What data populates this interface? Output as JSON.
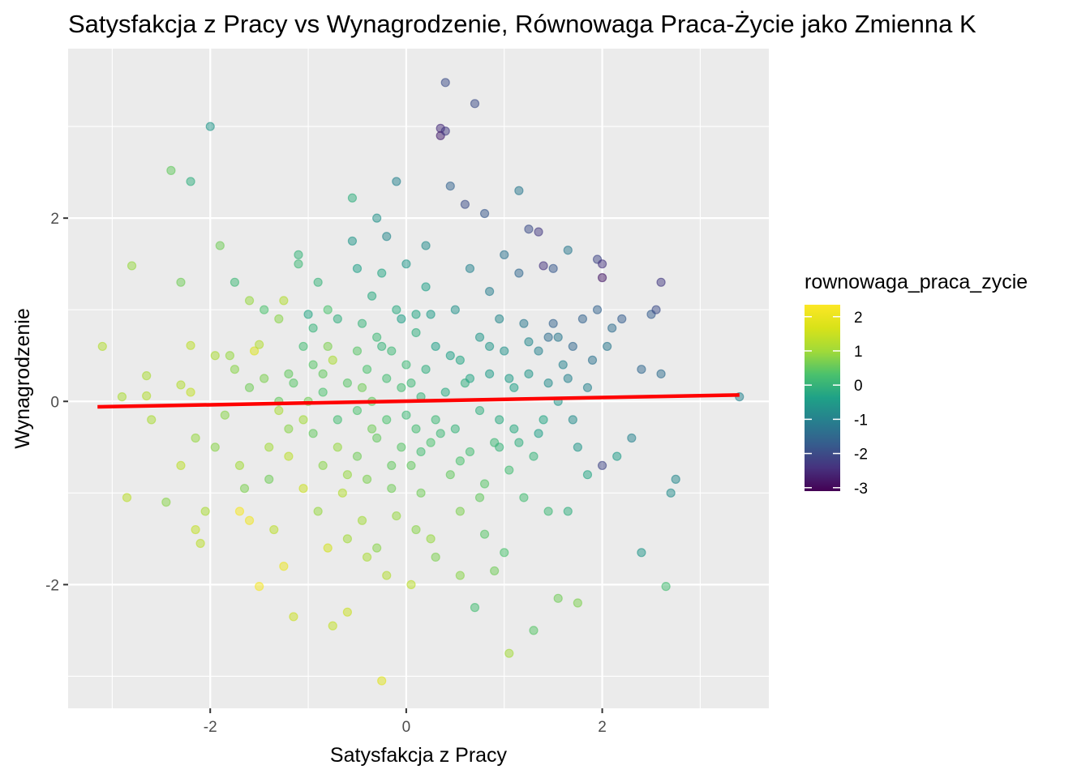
{
  "chart_data": {
    "type": "scatter",
    "title": "Satysfakcja z Pracy vs Wynagrodzenie, Równowaga Praca-Życie jako Zmienna K",
    "xlabel": "Satysfakcja z Pracy",
    "ylabel": "Wynagrodzenie",
    "xlim": [
      -3.45,
      3.7
    ],
    "ylim": [
      -3.35,
      3.85
    ],
    "x_ticks": [
      -2,
      0,
      2
    ],
    "y_ticks": [
      -2,
      0,
      2
    ],
    "x_tick_labels": [
      "-2",
      "0",
      "2"
    ],
    "y_tick_labels": [
      "-2",
      "0",
      "2"
    ],
    "grid": true,
    "legend": {
      "title": "rownowaga_praca_zycie",
      "position": "right",
      "ticks": [
        2,
        1,
        0,
        -1,
        -2,
        -3
      ],
      "tick_labels": [
        "2",
        "1",
        "0",
        "-1",
        "-2",
        "-3"
      ],
      "range": [
        -3.1,
        2.35
      ],
      "palette": "viridis"
    },
    "trend_line": {
      "x": [
        -3.15,
        3.4
      ],
      "y": [
        -0.06,
        0.07
      ],
      "color": "#ff0000"
    },
    "point_alpha": 0.5,
    "points": [
      [
        -3.1,
        0.6,
        1.2
      ],
      [
        -2.9,
        0.05,
        1.1
      ],
      [
        -2.85,
        -1.05,
        1.3
      ],
      [
        -2.8,
        1.48,
        0.9
      ],
      [
        -2.65,
        0.28,
        1.1
      ],
      [
        -2.65,
        0.06,
        1.2
      ],
      [
        -2.6,
        -0.2,
        1.1
      ],
      [
        -2.45,
        -1.1,
        0.8
      ],
      [
        -2.4,
        2.52,
        0.5
      ],
      [
        -2.3,
        1.3,
        0.6
      ],
      [
        -2.3,
        0.18,
        1.2
      ],
      [
        -2.3,
        -0.7,
        1.3
      ],
      [
        -2.2,
        0.1,
        1.4
      ],
      [
        -2.2,
        0.61,
        1.3
      ],
      [
        -2.2,
        2.4,
        -0.1
      ],
      [
        -2.15,
        -0.4,
        0.9
      ],
      [
        -2.15,
        -1.4,
        1.4
      ],
      [
        -2.1,
        -1.55,
        1.3
      ],
      [
        -2.05,
        -1.2,
        1.1
      ],
      [
        -2.0,
        3.0,
        -0.6
      ],
      [
        -1.95,
        0.5,
        1.1
      ],
      [
        -1.95,
        -0.5,
        0.8
      ],
      [
        -1.9,
        1.7,
        0.6
      ],
      [
        -1.85,
        -0.15,
        0.8
      ],
      [
        -1.8,
        0.5,
        0.9
      ],
      [
        -1.75,
        1.3,
        0.1
      ],
      [
        -1.75,
        0.35,
        0.8
      ],
      [
        -1.7,
        -0.7,
        1.0
      ],
      [
        -1.7,
        -1.2,
        2.2
      ],
      [
        -1.65,
        -0.95,
        0.7
      ],
      [
        -1.6,
        1.1,
        0.9
      ],
      [
        -1.6,
        0.15,
        0.6
      ],
      [
        -1.6,
        -1.3,
        2.1
      ],
      [
        -1.55,
        0.55,
        1.7
      ],
      [
        -1.5,
        0.62,
        1.2
      ],
      [
        -1.5,
        -2.02,
        2.2
      ],
      [
        -1.45,
        1.0,
        0.3
      ],
      [
        -1.45,
        0.25,
        0.7
      ],
      [
        -1.4,
        -0.5,
        1.0
      ],
      [
        -1.4,
        -0.85,
        0.6
      ],
      [
        -1.35,
        -1.4,
        1.3
      ],
      [
        -1.3,
        0.9,
        0.8
      ],
      [
        -1.3,
        -0.1,
        1.1
      ],
      [
        -1.25,
        1.1,
        1.2
      ],
      [
        -1.25,
        -1.8,
        2.0
      ],
      [
        -1.2,
        0.3,
        0.5
      ],
      [
        -1.2,
        -0.6,
        1.3
      ],
      [
        -1.15,
        0.2,
        0.4
      ],
      [
        -1.15,
        -2.35,
        1.5
      ],
      [
        -1.1,
        1.6,
        0.0
      ],
      [
        -1.1,
        1.5,
        0.1
      ],
      [
        -1.05,
        -0.2,
        1.0
      ],
      [
        -1.05,
        -0.95,
        1.5
      ],
      [
        -1.0,
        0.95,
        -0.3
      ],
      [
        -1.0,
        0.0,
        0.6
      ],
      [
        -0.95,
        0.4,
        0.4
      ],
      [
        -0.95,
        -0.35,
        0.5
      ],
      [
        -0.9,
        -1.2,
        0.9
      ],
      [
        -0.9,
        1.3,
        0.0
      ],
      [
        -0.85,
        0.1,
        0.3
      ],
      [
        -0.85,
        -0.7,
        0.8
      ],
      [
        -0.8,
        0.6,
        0.7
      ],
      [
        -0.8,
        -1.6,
        1.6
      ],
      [
        -0.75,
        -2.45,
        1.4
      ],
      [
        -0.75,
        0.45,
        1.1
      ],
      [
        -0.7,
        -0.2,
        0.2
      ],
      [
        -0.7,
        -0.5,
        0.9
      ],
      [
        -0.65,
        -1.0,
        1.2
      ],
      [
        -0.6,
        0.2,
        0.4
      ],
      [
        -0.6,
        -2.3,
        1.5
      ],
      [
        -0.55,
        1.75,
        -0.6
      ],
      [
        -0.55,
        2.22,
        -0.1
      ],
      [
        -0.5,
        0.55,
        0.4
      ],
      [
        -0.5,
        -0.1,
        0.3
      ],
      [
        -0.5,
        -0.6,
        0.6
      ],
      [
        -0.45,
        0.85,
        0.0
      ],
      [
        -0.45,
        -1.3,
        1.0
      ],
      [
        -0.4,
        0.35,
        0.3
      ],
      [
        -0.4,
        -0.85,
        0.7
      ],
      [
        -0.35,
        1.15,
        -0.2
      ],
      [
        -0.35,
        0.0,
        0.5
      ],
      [
        -0.3,
        -0.4,
        0.5
      ],
      [
        -0.3,
        0.7,
        0.1
      ],
      [
        -0.3,
        -1.6,
        0.8
      ],
      [
        -0.25,
        1.4,
        -0.3
      ],
      [
        -0.25,
        -3.05,
        1.8
      ],
      [
        -0.2,
        0.25,
        0.2
      ],
      [
        -0.2,
        -0.2,
        0.3
      ],
      [
        -0.15,
        0.55,
        0.1
      ],
      [
        -0.15,
        -0.95,
        0.6
      ],
      [
        -0.1,
        1.0,
        -0.2
      ],
      [
        -0.1,
        -1.25,
        0.9
      ],
      [
        -0.05,
        0.15,
        0.2
      ],
      [
        -0.05,
        -0.5,
        0.4
      ],
      [
        0.0,
        0.4,
        0.1
      ],
      [
        0.0,
        -0.15,
        0.1
      ],
      [
        0.0,
        1.5,
        -0.6
      ],
      [
        0.05,
        -0.7,
        0.5
      ],
      [
        0.05,
        -2.0,
        1.3
      ],
      [
        0.1,
        0.75,
        -0.1
      ],
      [
        0.1,
        -0.3,
        0.2
      ],
      [
        0.15,
        0.05,
        0.0
      ],
      [
        0.15,
        -1.0,
        0.6
      ],
      [
        0.2,
        1.25,
        -0.4
      ],
      [
        0.2,
        0.35,
        -0.1
      ],
      [
        0.25,
        -0.45,
        0.3
      ],
      [
        0.25,
        -1.5,
        0.9
      ],
      [
        0.3,
        0.6,
        -0.4
      ],
      [
        0.3,
        -0.2,
        0.1
      ],
      [
        0.35,
        2.98,
        -2.5
      ],
      [
        0.35,
        2.9,
        -2.7
      ],
      [
        0.4,
        3.48,
        -2.0
      ],
      [
        0.4,
        2.95,
        -2.3
      ],
      [
        0.4,
        0.1,
        -0.2
      ],
      [
        0.45,
        -0.8,
        0.5
      ],
      [
        0.5,
        1.0,
        -0.7
      ],
      [
        0.5,
        -0.3,
        0.0
      ],
      [
        0.55,
        0.45,
        -0.3
      ],
      [
        0.55,
        -1.2,
        0.7
      ],
      [
        0.6,
        2.15,
        -2.0
      ],
      [
        0.6,
        0.2,
        -0.1
      ],
      [
        0.65,
        -0.55,
        0.2
      ],
      [
        0.65,
        1.45,
        -1.0
      ],
      [
        0.7,
        3.25,
        -2.0
      ],
      [
        0.7,
        -2.25,
        0.2
      ],
      [
        0.75,
        0.7,
        -0.6
      ],
      [
        0.75,
        -0.1,
        -0.1
      ],
      [
        0.8,
        2.05,
        -1.8
      ],
      [
        0.8,
        -0.9,
        0.4
      ],
      [
        0.85,
        1.2,
        -1.1
      ],
      [
        0.85,
        0.3,
        -0.5
      ],
      [
        0.9,
        -0.45,
        0.1
      ],
      [
        0.9,
        -1.85,
        0.6
      ],
      [
        0.95,
        0.9,
        -0.9
      ],
      [
        0.95,
        -0.2,
        -0.2
      ],
      [
        1.0,
        1.6,
        -1.3
      ],
      [
        1.0,
        0.55,
        -0.7
      ],
      [
        1.05,
        -0.75,
        0.2
      ],
      [
        1.05,
        -2.75,
        1.0
      ],
      [
        1.1,
        0.15,
        -0.4
      ],
      [
        1.1,
        -0.3,
        -0.2
      ],
      [
        1.15,
        1.4,
        -1.5
      ],
      [
        1.15,
        2.3,
        -1.2
      ],
      [
        1.2,
        0.85,
        -1.2
      ],
      [
        1.2,
        -1.05,
        0.2
      ],
      [
        1.25,
        1.88,
        -2.0
      ],
      [
        1.25,
        0.3,
        -0.6
      ],
      [
        1.3,
        -0.6,
        0.0
      ],
      [
        1.3,
        -2.5,
        0.4
      ],
      [
        1.35,
        1.85,
        -2.3
      ],
      [
        1.35,
        0.55,
        -1.0
      ],
      [
        1.4,
        1.48,
        -2.4
      ],
      [
        1.4,
        -0.2,
        -0.3
      ],
      [
        1.45,
        0.7,
        -1.4
      ],
      [
        1.45,
        -1.2,
        0.1
      ],
      [
        1.5,
        1.45,
        -1.8
      ],
      [
        1.5,
        0.85,
        -1.6
      ],
      [
        1.55,
        0.0,
        -0.6
      ],
      [
        1.55,
        -2.15,
        0.6
      ],
      [
        1.6,
        0.4,
        -1.0
      ],
      [
        1.65,
        1.65,
        -1.2
      ],
      [
        1.65,
        -1.2,
        -0.1
      ],
      [
        1.7,
        0.6,
        -1.5
      ],
      [
        1.7,
        -0.2,
        -0.8
      ],
      [
        1.75,
        -2.2,
        0.7
      ],
      [
        1.8,
        0.9,
        -1.6
      ],
      [
        1.85,
        0.15,
        -1.0
      ],
      [
        1.85,
        -0.8,
        -0.3
      ],
      [
        1.9,
        0.45,
        -1.3
      ],
      [
        1.95,
        1.0,
        -1.6
      ],
      [
        1.95,
        1.55,
        -2.1
      ],
      [
        2.0,
        1.5,
        -2.4
      ],
      [
        2.0,
        1.35,
        -2.8
      ],
      [
        2.0,
        -0.7,
        -2.1
      ],
      [
        2.05,
        0.6,
        -1.2
      ],
      [
        2.1,
        0.8,
        -1.4
      ],
      [
        2.15,
        -0.6,
        -0.5
      ],
      [
        2.2,
        0.9,
        -1.7
      ],
      [
        2.3,
        -0.4,
        -1.0
      ],
      [
        2.4,
        0.35,
        -1.5
      ],
      [
        2.4,
        -1.65,
        -0.6
      ],
      [
        2.5,
        0.95,
        -1.7
      ],
      [
        2.55,
        1.0,
        -2.0
      ],
      [
        2.6,
        1.3,
        -2.3
      ],
      [
        2.6,
        0.3,
        -1.4
      ],
      [
        2.65,
        -2.02,
        0.2
      ],
      [
        2.7,
        -1.0,
        -0.8
      ],
      [
        2.75,
        -0.85,
        -0.9
      ],
      [
        3.4,
        0.05,
        -1.0
      ],
      [
        -1.3,
        0.0,
        0.5
      ],
      [
        -1.2,
        -0.3,
        0.8
      ],
      [
        -1.05,
        0.6,
        0.2
      ],
      [
        -0.95,
        0.8,
        0.0
      ],
      [
        -0.85,
        0.3,
        0.5
      ],
      [
        -0.7,
        0.9,
        -0.1
      ],
      [
        -0.6,
        -0.8,
        0.9
      ],
      [
        -0.45,
        0.15,
        0.6
      ],
      [
        -0.35,
        -0.3,
        0.6
      ],
      [
        -0.25,
        0.6,
        0.0
      ],
      [
        -0.15,
        -0.7,
        0.5
      ],
      [
        -0.05,
        0.9,
        -0.4
      ],
      [
        0.05,
        0.2,
        0.1
      ],
      [
        0.15,
        -0.55,
        0.2
      ],
      [
        0.25,
        0.95,
        -0.5
      ],
      [
        0.35,
        -0.35,
        0.1
      ],
      [
        0.45,
        0.5,
        -0.4
      ],
      [
        0.55,
        -0.65,
        0.3
      ],
      [
        0.65,
        0.25,
        -0.3
      ],
      [
        0.75,
        -1.05,
        0.5
      ],
      [
        0.85,
        0.6,
        -0.6
      ],
      [
        0.95,
        -0.5,
        0.0
      ],
      [
        1.05,
        0.25,
        -0.5
      ],
      [
        1.15,
        -0.45,
        -0.1
      ],
      [
        1.25,
        0.65,
        -0.9
      ],
      [
        1.35,
        -0.35,
        -0.4
      ],
      [
        1.45,
        0.2,
        -0.8
      ],
      [
        1.55,
        0.7,
        -1.2
      ],
      [
        1.65,
        0.25,
        -1.0
      ],
      [
        1.75,
        -0.5,
        -0.6
      ],
      [
        -0.8,
        1.0,
        0.3
      ],
      [
        -0.5,
        1.45,
        -0.4
      ],
      [
        -0.2,
        1.8,
        -0.9
      ],
      [
        -0.1,
        2.4,
        -1.0
      ],
      [
        0.2,
        1.7,
        -0.8
      ],
      [
        0.45,
        2.35,
        -1.6
      ],
      [
        0.1,
        0.95,
        -0.3
      ],
      [
        -0.3,
        2.0,
        -0.7
      ],
      [
        -0.6,
        -1.5,
        1.0
      ],
      [
        -0.4,
        -1.7,
        1.1
      ],
      [
        -0.2,
        -1.9,
        1.2
      ],
      [
        0.1,
        -1.4,
        0.8
      ],
      [
        0.3,
        -1.7,
        0.7
      ],
      [
        0.55,
        -1.9,
        0.8
      ],
      [
        0.8,
        -1.45,
        0.4
      ],
      [
        1.0,
        -1.65,
        0.3
      ]
    ]
  }
}
